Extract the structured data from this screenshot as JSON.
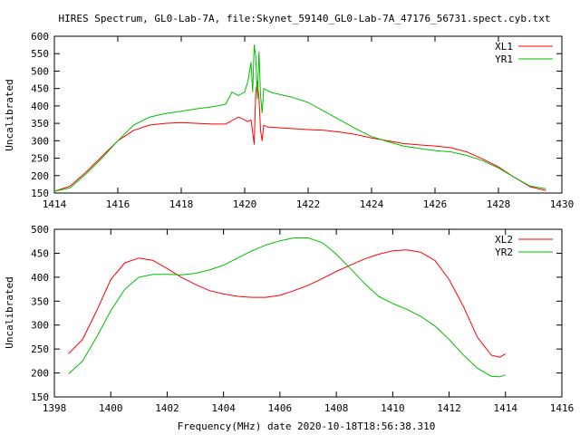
{
  "title": "HIRES Spectrum, GL0-Lab-7A, file:Skynet_59140_GL0-Lab-7A_47176_56731.spect.cyb.txt",
  "xlabel": "Frequency(MHz) date 2020-10-18T18:56:38.310",
  "chart_data": [
    {
      "type": "line",
      "title": "HIRES Spectrum, GL0-Lab-7A, file:Skynet_59140_GL0-Lab-7A_47176_56731.spect.cyb.txt",
      "xlabel": "",
      "ylabel": "Uncalibrated",
      "xlim": [
        1414,
        1430
      ],
      "ylim": [
        150,
        600
      ],
      "xticks": [
        1414,
        1416,
        1418,
        1420,
        1422,
        1424,
        1426,
        1428,
        1430
      ],
      "yticks": [
        150,
        200,
        250,
        300,
        350,
        400,
        450,
        500,
        550,
        600
      ],
      "legend_position": "top-right",
      "series": [
        {
          "name": "XL1",
          "color": "#ff0000",
          "points": [
            [
              1414.0,
              155
            ],
            [
              1414.5,
              170
            ],
            [
              1415.0,
              210
            ],
            [
              1415.5,
              255
            ],
            [
              1416.0,
              300
            ],
            [
              1416.5,
              330
            ],
            [
              1417.0,
              345
            ],
            [
              1417.5,
              350
            ],
            [
              1418.0,
              352
            ],
            [
              1418.5,
              350
            ],
            [
              1419.0,
              348
            ],
            [
              1419.4,
              348
            ],
            [
              1419.6,
              358
            ],
            [
              1419.8,
              368
            ],
            [
              1420.0,
              360
            ],
            [
              1420.1,
              355
            ],
            [
              1420.2,
              360
            ],
            [
              1420.3,
              290
            ],
            [
              1420.35,
              440
            ],
            [
              1420.4,
              470
            ],
            [
              1420.45,
              420
            ],
            [
              1420.5,
              330
            ],
            [
              1420.55,
              300
            ],
            [
              1420.6,
              345
            ],
            [
              1420.7,
              340
            ],
            [
              1421.0,
              338
            ],
            [
              1421.5,
              335
            ],
            [
              1422.0,
              332
            ],
            [
              1422.5,
              330
            ],
            [
              1423.0,
              325
            ],
            [
              1423.5,
              318
            ],
            [
              1424.0,
              308
            ],
            [
              1424.5,
              300
            ],
            [
              1425.0,
              292
            ],
            [
              1425.5,
              288
            ],
            [
              1426.0,
              285
            ],
            [
              1426.5,
              280
            ],
            [
              1427.0,
              268
            ],
            [
              1427.5,
              248
            ],
            [
              1428.0,
              225
            ],
            [
              1428.5,
              195
            ],
            [
              1429.0,
              168
            ],
            [
              1429.5,
              157
            ]
          ]
        },
        {
          "name": "YR1",
          "color": "#00c000",
          "points": [
            [
              1414.0,
              155
            ],
            [
              1414.5,
              165
            ],
            [
              1415.0,
              205
            ],
            [
              1415.5,
              250
            ],
            [
              1416.0,
              300
            ],
            [
              1416.5,
              345
            ],
            [
              1417.0,
              368
            ],
            [
              1417.5,
              378
            ],
            [
              1418.0,
              385
            ],
            [
              1418.5,
              392
            ],
            [
              1419.0,
              398
            ],
            [
              1419.4,
              405
            ],
            [
              1419.6,
              440
            ],
            [
              1419.8,
              430
            ],
            [
              1420.0,
              440
            ],
            [
              1420.1,
              470
            ],
            [
              1420.2,
              525
            ],
            [
              1420.25,
              440
            ],
            [
              1420.3,
              575
            ],
            [
              1420.35,
              540
            ],
            [
              1420.4,
              420
            ],
            [
              1420.45,
              555
            ],
            [
              1420.5,
              430
            ],
            [
              1420.55,
              380
            ],
            [
              1420.6,
              450
            ],
            [
              1420.8,
              440
            ],
            [
              1421.0,
              435
            ],
            [
              1421.5,
              425
            ],
            [
              1422.0,
              410
            ],
            [
              1422.5,
              385
            ],
            [
              1423.0,
              360
            ],
            [
              1423.5,
              335
            ],
            [
              1424.0,
              312
            ],
            [
              1424.5,
              298
            ],
            [
              1425.0,
              285
            ],
            [
              1425.5,
              278
            ],
            [
              1426.0,
              272
            ],
            [
              1426.5,
              268
            ],
            [
              1427.0,
              258
            ],
            [
              1427.5,
              243
            ],
            [
              1428.0,
              222
            ],
            [
              1428.5,
              195
            ],
            [
              1429.0,
              170
            ],
            [
              1429.5,
              162
            ]
          ]
        }
      ]
    },
    {
      "type": "line",
      "title": "",
      "xlabel": "Frequency(MHz) date 2020-10-18T18:56:38.310",
      "ylabel": "Uncalibrated",
      "xlim": [
        1398,
        1416
      ],
      "ylim": [
        150,
        500
      ],
      "xticks": [
        1398,
        1400,
        1402,
        1404,
        1406,
        1408,
        1410,
        1412,
        1414,
        1416
      ],
      "yticks": [
        150,
        200,
        250,
        300,
        350,
        400,
        450,
        500
      ],
      "legend_position": "top-right",
      "series": [
        {
          "name": "XL2",
          "color": "#ff0000",
          "points": [
            [
              1398.5,
              240
            ],
            [
              1399.0,
              270
            ],
            [
              1399.5,
              330
            ],
            [
              1400.0,
              395
            ],
            [
              1400.5,
              430
            ],
            [
              1401.0,
              440
            ],
            [
              1401.5,
              435
            ],
            [
              1402.0,
              418
            ],
            [
              1402.5,
              400
            ],
            [
              1403.0,
              385
            ],
            [
              1403.5,
              372
            ],
            [
              1404.0,
              365
            ],
            [
              1404.5,
              360
            ],
            [
              1405.0,
              358
            ],
            [
              1405.5,
              358
            ],
            [
              1406.0,
              362
            ],
            [
              1406.5,
              372
            ],
            [
              1407.0,
              383
            ],
            [
              1407.5,
              397
            ],
            [
              1408.0,
              412
            ],
            [
              1408.5,
              425
            ],
            [
              1409.0,
              438
            ],
            [
              1409.5,
              448
            ],
            [
              1410.0,
              455
            ],
            [
              1410.5,
              457
            ],
            [
              1411.0,
              452
            ],
            [
              1411.5,
              435
            ],
            [
              1412.0,
              395
            ],
            [
              1412.5,
              340
            ],
            [
              1413.0,
              275
            ],
            [
              1413.5,
              237
            ],
            [
              1413.8,
              233
            ],
            [
              1414.0,
              240
            ]
          ]
        },
        {
          "name": "YR2",
          "color": "#00c000",
          "points": [
            [
              1398.5,
              198
            ],
            [
              1399.0,
              225
            ],
            [
              1399.5,
              275
            ],
            [
              1400.0,
              330
            ],
            [
              1400.5,
              375
            ],
            [
              1401.0,
              400
            ],
            [
              1401.5,
              406
            ],
            [
              1402.0,
              406
            ],
            [
              1402.5,
              405
            ],
            [
              1403.0,
              408
            ],
            [
              1403.5,
              415
            ],
            [
              1404.0,
              425
            ],
            [
              1404.5,
              440
            ],
            [
              1405.0,
              455
            ],
            [
              1405.5,
              467
            ],
            [
              1406.0,
              476
            ],
            [
              1406.5,
              482
            ],
            [
              1407.0,
              482
            ],
            [
              1407.5,
              472
            ],
            [
              1408.0,
              448
            ],
            [
              1408.5,
              418
            ],
            [
              1409.0,
              387
            ],
            [
              1409.5,
              360
            ],
            [
              1410.0,
              345
            ],
            [
              1410.5,
              333
            ],
            [
              1411.0,
              318
            ],
            [
              1411.5,
              298
            ],
            [
              1412.0,
              270
            ],
            [
              1412.5,
              238
            ],
            [
              1413.0,
              210
            ],
            [
              1413.5,
              193
            ],
            [
              1413.8,
              192
            ],
            [
              1414.0,
              196
            ]
          ]
        }
      ]
    }
  ]
}
